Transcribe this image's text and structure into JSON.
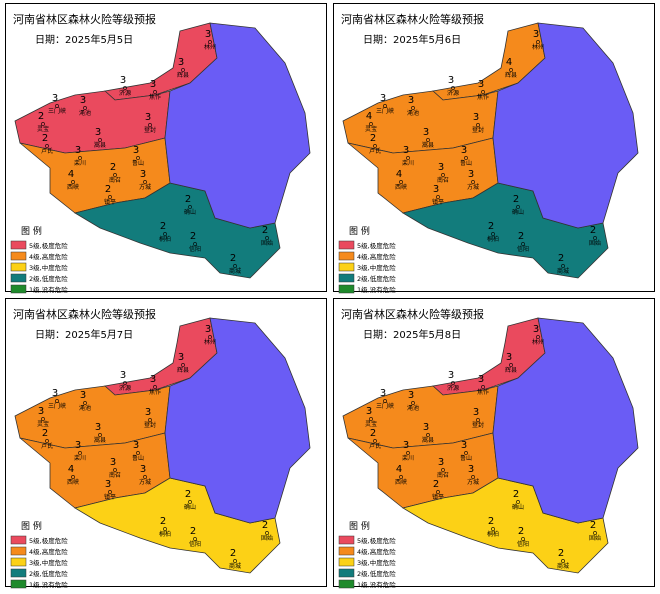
{
  "title": "河南省林区森林火险等级预报",
  "legend": {
    "title": "图 例",
    "items": [
      {
        "label": "5级,极度危险",
        "color": "#ea4a5e"
      },
      {
        "label": "4级,高度危险",
        "color": "#f58a1c"
      },
      {
        "label": "3级,中度危险",
        "color": "#fcd116"
      },
      {
        "label": "2级,低度危险",
        "color": "#127c7c"
      },
      {
        "label": "1级,没有危险",
        "color": "#1f8a2c"
      }
    ]
  },
  "stations": [
    "林州",
    "辉县",
    "济源",
    "焦作",
    "三门峡",
    "灵宝",
    "卢氏",
    "渑池",
    "登封",
    "嵩县",
    "栾川",
    "鲁山",
    "西峡",
    "南召",
    "方城",
    "镇平",
    "确山",
    "桐柏",
    "信阳",
    "商城",
    "固始"
  ],
  "panels": [
    {
      "date": "日期：2025年5月5日",
      "region_colors": [
        "#ea4a5e",
        "#ea4a5e",
        "#f58a1c",
        "#127c7c",
        "#6a5cf5"
      ],
      "levels": [
        3,
        3,
        3,
        3,
        3,
        2,
        2,
        3,
        3,
        3,
        3,
        3,
        4,
        2,
        3,
        2,
        2,
        2,
        2,
        2,
        2
      ]
    },
    {
      "date": "日期：2025年5月6日",
      "region_colors": [
        "#f58a1c",
        "#f58a1c",
        "#f58a1c",
        "#127c7c",
        "#6a5cf5"
      ],
      "levels": [
        3,
        4,
        3,
        3,
        3,
        4,
        2,
        3,
        3,
        3,
        3,
        3,
        4,
        3,
        3,
        3,
        2,
        2,
        2,
        2,
        2
      ]
    },
    {
      "date": "日期：2025年5月7日",
      "region_colors": [
        "#ea4a5e",
        "#f58a1c",
        "#f58a1c",
        "#fcd116",
        "#6a5cf5"
      ],
      "levels": [
        3,
        3,
        3,
        3,
        3,
        3,
        2,
        3,
        3,
        3,
        3,
        3,
        4,
        3,
        3,
        3,
        2,
        2,
        2,
        2,
        2
      ]
    },
    {
      "date": "日期：2025年5月8日",
      "region_colors": [
        "#ea4a5e",
        "#f58a1c",
        "#f58a1c",
        "#fcd116",
        "#6a5cf5"
      ],
      "levels": [
        3,
        3,
        3,
        3,
        3,
        3,
        2,
        3,
        3,
        3,
        3,
        3,
        4,
        3,
        3,
        2,
        2,
        2,
        2,
        2,
        2
      ]
    }
  ]
}
